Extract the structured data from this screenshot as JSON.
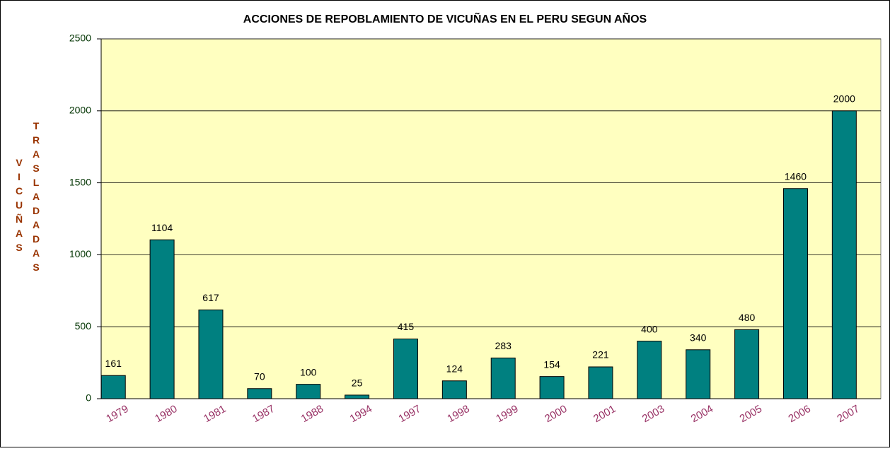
{
  "chart_data": {
    "type": "bar",
    "title": "ACCIONES DE REPOBLAMIENTO DE VICUÑAS EN EL PERU SEGUN AÑOS",
    "ylabel": [
      "VICUÑAS",
      "TRASLADADAS"
    ],
    "categories": [
      "1979",
      "1980",
      "1981",
      "1987",
      "1988",
      "1994",
      "1997",
      "1998",
      "1999",
      "2000",
      "2001",
      "2003",
      "2004",
      "2005",
      "2006",
      "2007"
    ],
    "values": [
      161,
      1104,
      617,
      70,
      100,
      25,
      415,
      124,
      283,
      154,
      221,
      400,
      340,
      480,
      1460,
      2000
    ],
    "color": "#008080",
    "ylim": [
      0,
      2500
    ],
    "yticks": [
      0,
      500,
      1000,
      1500,
      2000,
      2500
    ],
    "grid": true
  }
}
